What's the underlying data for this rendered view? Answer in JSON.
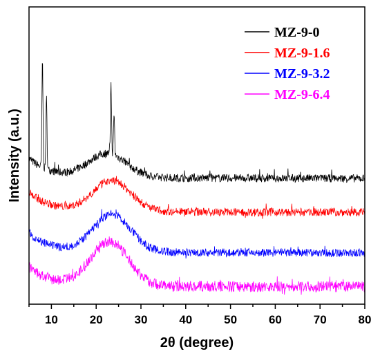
{
  "chart_data": {
    "type": "line",
    "title": "",
    "xlabel": "2θ (degree)",
    "ylabel": "Intensity (a.u.)",
    "xlim": [
      5,
      80
    ],
    "x_ticks": [
      10,
      20,
      30,
      40,
      50,
      60,
      70,
      80
    ],
    "y_ticks_shown": false,
    "grid": false,
    "legend_position": "top-right",
    "series": [
      {
        "name": "MZ-9-0",
        "color": "#000000",
        "offset": 1.6,
        "peaks": [
          {
            "x": 8.0,
            "height": 1.6
          },
          {
            "x": 8.9,
            "height": 1.05
          },
          {
            "x": 23.3,
            "height": 1.05
          },
          {
            "x": 24.0,
            "height": 0.6
          },
          {
            "x": 45.5,
            "height": 0.08
          }
        ],
        "hump": {
          "center": 22.5,
          "height": 0.35
        },
        "noise": 0.06
      },
      {
        "name": "MZ-9-1.6",
        "color": "#ff0000",
        "offset": 1.1,
        "peaks": [],
        "hump": {
          "center": 23.5,
          "height": 0.45
        },
        "noise": 0.06
      },
      {
        "name": "MZ-9-3.2",
        "color": "#0000ff",
        "offset": 0.5,
        "peaks": [],
        "hump": {
          "center": 23.5,
          "height": 0.55
        },
        "noise": 0.06
      },
      {
        "name": "MZ-9-6.4",
        "color": "#ff00ff",
        "offset": 0.0,
        "peaks": [],
        "hump": {
          "center": 23.0,
          "height": 0.65
        },
        "noise": 0.08
      }
    ]
  }
}
